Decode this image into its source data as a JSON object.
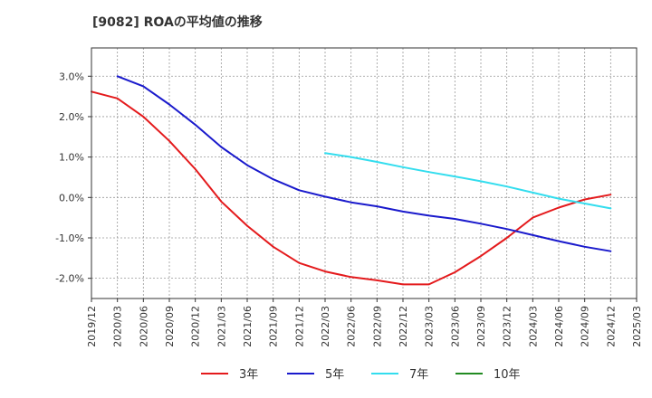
{
  "chart_data": {
    "type": "line",
    "title": "[9082]  ROAの平均値の推移",
    "xlabel": "",
    "ylabel": "",
    "x_ticks": [
      "2019/12",
      "2020/03",
      "2020/06",
      "2020/09",
      "2020/12",
      "2021/03",
      "2021/06",
      "2021/09",
      "2021/12",
      "2022/03",
      "2022/06",
      "2022/09",
      "2022/12",
      "2023/03",
      "2023/06",
      "2023/09",
      "2023/12",
      "2024/03",
      "2024/06",
      "2024/09",
      "2024/12",
      "2025/03"
    ],
    "y_ticks": [
      3.0,
      2.0,
      1.0,
      0.0,
      -1.0,
      -2.0
    ],
    "y_tick_labels": [
      "3.0%",
      "2.0%",
      "1.0%",
      "0.0%",
      "-1.0%",
      "-2.0%"
    ],
    "ylim": [
      -2.5,
      3.7
    ],
    "grid": true,
    "legend_position": "bottom",
    "series": [
      {
        "name": "3年",
        "color": "#e41a1c",
        "points": [
          [
            "2019/12",
            2.62
          ],
          [
            "2020/03",
            2.45
          ],
          [
            "2020/06",
            2.0
          ],
          [
            "2020/09",
            1.4
          ],
          [
            "2020/12",
            0.7
          ],
          [
            "2021/03",
            -0.1
          ],
          [
            "2021/06",
            -0.7
          ],
          [
            "2021/09",
            -1.22
          ],
          [
            "2021/12",
            -1.62
          ],
          [
            "2022/03",
            -1.83
          ],
          [
            "2022/06",
            -1.97
          ],
          [
            "2022/09",
            -2.05
          ],
          [
            "2022/12",
            -2.15
          ],
          [
            "2023/03",
            -2.15
          ],
          [
            "2023/06",
            -1.85
          ],
          [
            "2023/09",
            -1.45
          ],
          [
            "2023/12",
            -1.0
          ],
          [
            "2024/03",
            -0.5
          ],
          [
            "2024/06",
            -0.25
          ],
          [
            "2024/09",
            -0.05
          ],
          [
            "2024/12",
            0.07
          ]
        ]
      },
      {
        "name": "5年",
        "color": "#1a1acc",
        "points": [
          [
            "2020/03",
            3.0
          ],
          [
            "2020/06",
            2.75
          ],
          [
            "2020/09",
            2.3
          ],
          [
            "2020/12",
            1.8
          ],
          [
            "2021/03",
            1.25
          ],
          [
            "2021/06",
            0.8
          ],
          [
            "2021/09",
            0.45
          ],
          [
            "2021/12",
            0.18
          ],
          [
            "2022/03",
            0.02
          ],
          [
            "2022/06",
            -0.12
          ],
          [
            "2022/09",
            -0.22
          ],
          [
            "2022/12",
            -0.35
          ],
          [
            "2023/03",
            -0.45
          ],
          [
            "2023/06",
            -0.53
          ],
          [
            "2023/09",
            -0.65
          ],
          [
            "2023/12",
            -0.78
          ],
          [
            "2024/03",
            -0.93
          ],
          [
            "2024/06",
            -1.08
          ],
          [
            "2024/09",
            -1.22
          ],
          [
            "2024/12",
            -1.33
          ]
        ]
      },
      {
        "name": "7年",
        "color": "#33ddee",
        "points": [
          [
            "2022/03",
            1.1
          ],
          [
            "2022/06",
            1.0
          ],
          [
            "2022/09",
            0.88
          ],
          [
            "2022/12",
            0.75
          ],
          [
            "2023/03",
            0.63
          ],
          [
            "2023/06",
            0.52
          ],
          [
            "2023/09",
            0.4
          ],
          [
            "2023/12",
            0.27
          ],
          [
            "2024/03",
            0.12
          ],
          [
            "2024/06",
            -0.03
          ],
          [
            "2024/09",
            -0.15
          ],
          [
            "2024/12",
            -0.27
          ]
        ]
      },
      {
        "name": "10年",
        "color": "#228b22",
        "points": []
      }
    ]
  }
}
